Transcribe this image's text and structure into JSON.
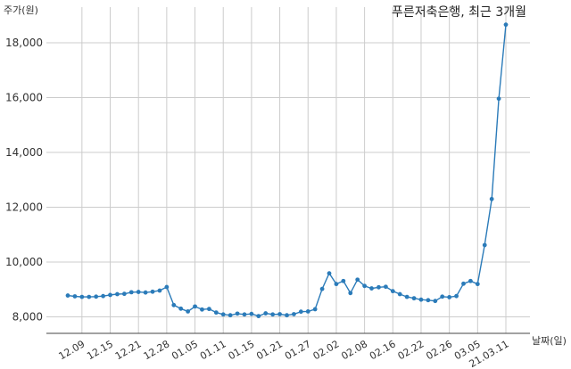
{
  "chart_data": {
    "type": "line",
    "title": "푸른저축은행, 최근 3개월",
    "xlabel": "날짜(일)",
    "ylabel": "주가(원)",
    "ylim": [
      7400,
      19300
    ],
    "yticks": [
      8000,
      10000,
      12000,
      14000,
      16000,
      18000
    ],
    "ytick_labels": [
      "8,000",
      "10,000",
      "12,000",
      "14,000",
      "16,000",
      "18,000"
    ],
    "xticks": [
      {
        "label": "12.09",
        "index": 2
      },
      {
        "label": "12.15",
        "index": 6
      },
      {
        "label": "12.21",
        "index": 10
      },
      {
        "label": "12.28",
        "index": 14
      },
      {
        "label": "01.05",
        "index": 18
      },
      {
        "label": "01.11",
        "index": 22
      },
      {
        "label": "01.15",
        "index": 26
      },
      {
        "label": "01.21",
        "index": 30
      },
      {
        "label": "01.27",
        "index": 34
      },
      {
        "label": "02.02",
        "index": 38
      },
      {
        "label": "02.08",
        "index": 42
      },
      {
        "label": "02.16",
        "index": 46
      },
      {
        "label": "02.22",
        "index": 50
      },
      {
        "label": "02.26",
        "index": 54
      },
      {
        "label": "03.05",
        "index": 58
      },
      {
        "label": "21.03.11",
        "index": 62
      }
    ],
    "series": [
      {
        "color": "#2b7bb9",
        "values": [
          8780,
          8750,
          8730,
          8730,
          8740,
          8760,
          8800,
          8830,
          8840,
          8900,
          8910,
          8890,
          8920,
          8960,
          9090,
          8430,
          8300,
          8200,
          8380,
          8270,
          8290,
          8160,
          8090,
          8060,
          8120,
          8090,
          8110,
          8030,
          8130,
          8090,
          8100,
          8060,
          8100,
          8190,
          8200,
          8280,
          9020,
          9590,
          9200,
          9310,
          8870,
          9360,
          9130,
          9040,
          9080,
          9100,
          8940,
          8830,
          8730,
          8680,
          8630,
          8610,
          8580,
          8740,
          8720,
          8760,
          9210,
          9310,
          9200,
          10620,
          12300,
          15960,
          18660
        ]
      }
    ],
    "grid": true
  }
}
